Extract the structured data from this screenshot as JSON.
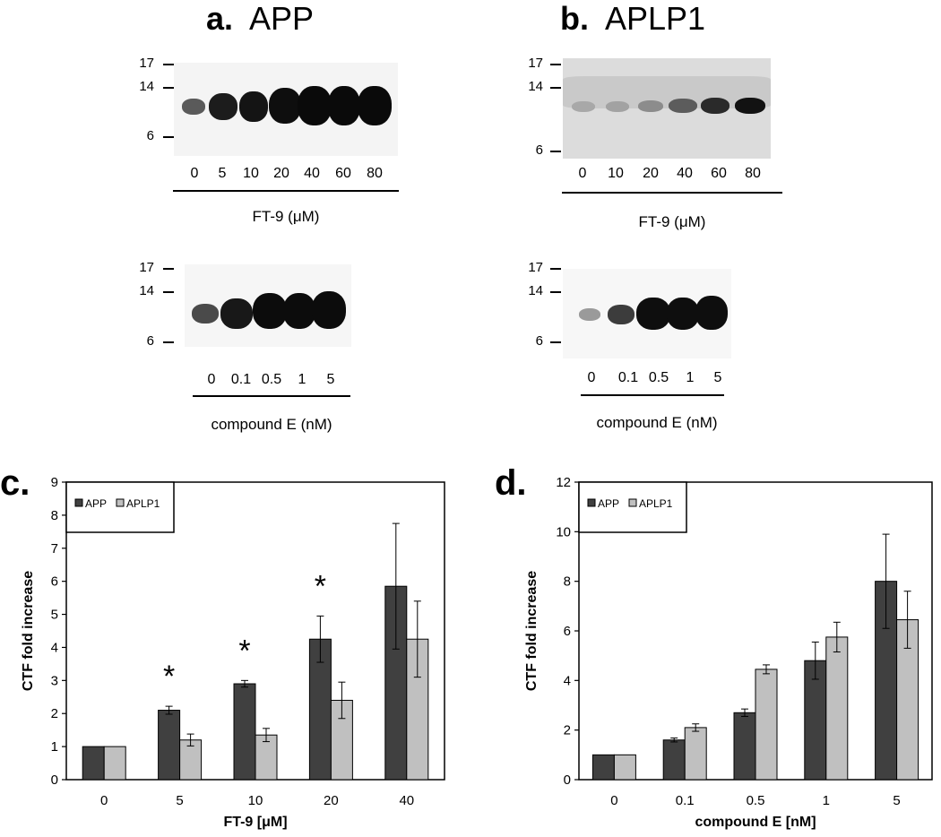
{
  "panels": {
    "a": {
      "letter": "a.",
      "title": "APP"
    },
    "b": {
      "letter": "b.",
      "title": "APLP1"
    }
  },
  "blots": {
    "a_top": {
      "mw": [
        "17",
        "14",
        "6"
      ],
      "lanes": [
        "0",
        "5",
        "10",
        "20",
        "40",
        "60",
        "80"
      ],
      "caption": "FT-9 (μM)"
    },
    "b_top": {
      "mw": [
        "17",
        "14",
        "6"
      ],
      "lanes": [
        "0",
        "10",
        "20",
        "40",
        "60",
        "80"
      ],
      "caption": "FT-9 (μM)"
    },
    "a_bottom": {
      "mw": [
        "17",
        "14",
        "6"
      ],
      "lanes": [
        "0",
        "0.1",
        "0.5",
        "1",
        "5"
      ],
      "caption": "compound E (nM)"
    },
    "b_bottom": {
      "mw": [
        "17",
        "14",
        "6"
      ],
      "lanes": [
        "0",
        "0.1",
        "0.5",
        "1",
        "5"
      ],
      "caption": "compound E (nM)"
    }
  },
  "chart_data": [
    {
      "panel_letter": "c.",
      "type": "bar",
      "categories": [
        "0",
        "5",
        "10",
        "20",
        "40"
      ],
      "series": [
        {
          "name": "APP",
          "values": [
            1.0,
            2.1,
            2.9,
            4.25,
            5.85
          ],
          "errors": [
            0,
            0.12,
            0.1,
            0.7,
            1.9
          ],
          "color": "#404040"
        },
        {
          "name": "APLP1",
          "values": [
            1.0,
            1.2,
            1.35,
            2.4,
            4.25
          ],
          "errors": [
            0,
            0.18,
            0.2,
            0.55,
            1.15
          ],
          "color": "#c0c0c0"
        }
      ],
      "significance": [
        "",
        "*",
        "*",
        "*",
        ""
      ],
      "xlabel": "FT-9 [μM]",
      "ylabel": "CTF fold increase",
      "ylim": [
        0,
        9
      ],
      "yticks": [
        "0",
        "1",
        "2",
        "3",
        "4",
        "5",
        "6",
        "7",
        "8",
        "9"
      ],
      "legend_position": "top-left",
      "grid": false
    },
    {
      "panel_letter": "d.",
      "type": "bar",
      "categories": [
        "0",
        "0.1",
        "0.5",
        "1",
        "5"
      ],
      "series": [
        {
          "name": "APP",
          "values": [
            1.0,
            1.6,
            2.7,
            4.8,
            8.0
          ],
          "errors": [
            0,
            0.08,
            0.15,
            0.75,
            1.9
          ],
          "color": "#404040"
        },
        {
          "name": "APLP1",
          "values": [
            1.0,
            2.1,
            4.45,
            5.75,
            6.45
          ],
          "errors": [
            0,
            0.15,
            0.18,
            0.6,
            1.15
          ],
          "color": "#c0c0c0"
        }
      ],
      "significance": [
        "",
        "",
        "",
        "",
        ""
      ],
      "xlabel": "compound E [nM]",
      "ylabel": "CTF fold increase",
      "ylim": [
        0,
        12
      ],
      "yticks": [
        "0",
        "2",
        "4",
        "6",
        "8",
        "10",
        "12"
      ],
      "legend_position": "top-left",
      "grid": false
    }
  ]
}
